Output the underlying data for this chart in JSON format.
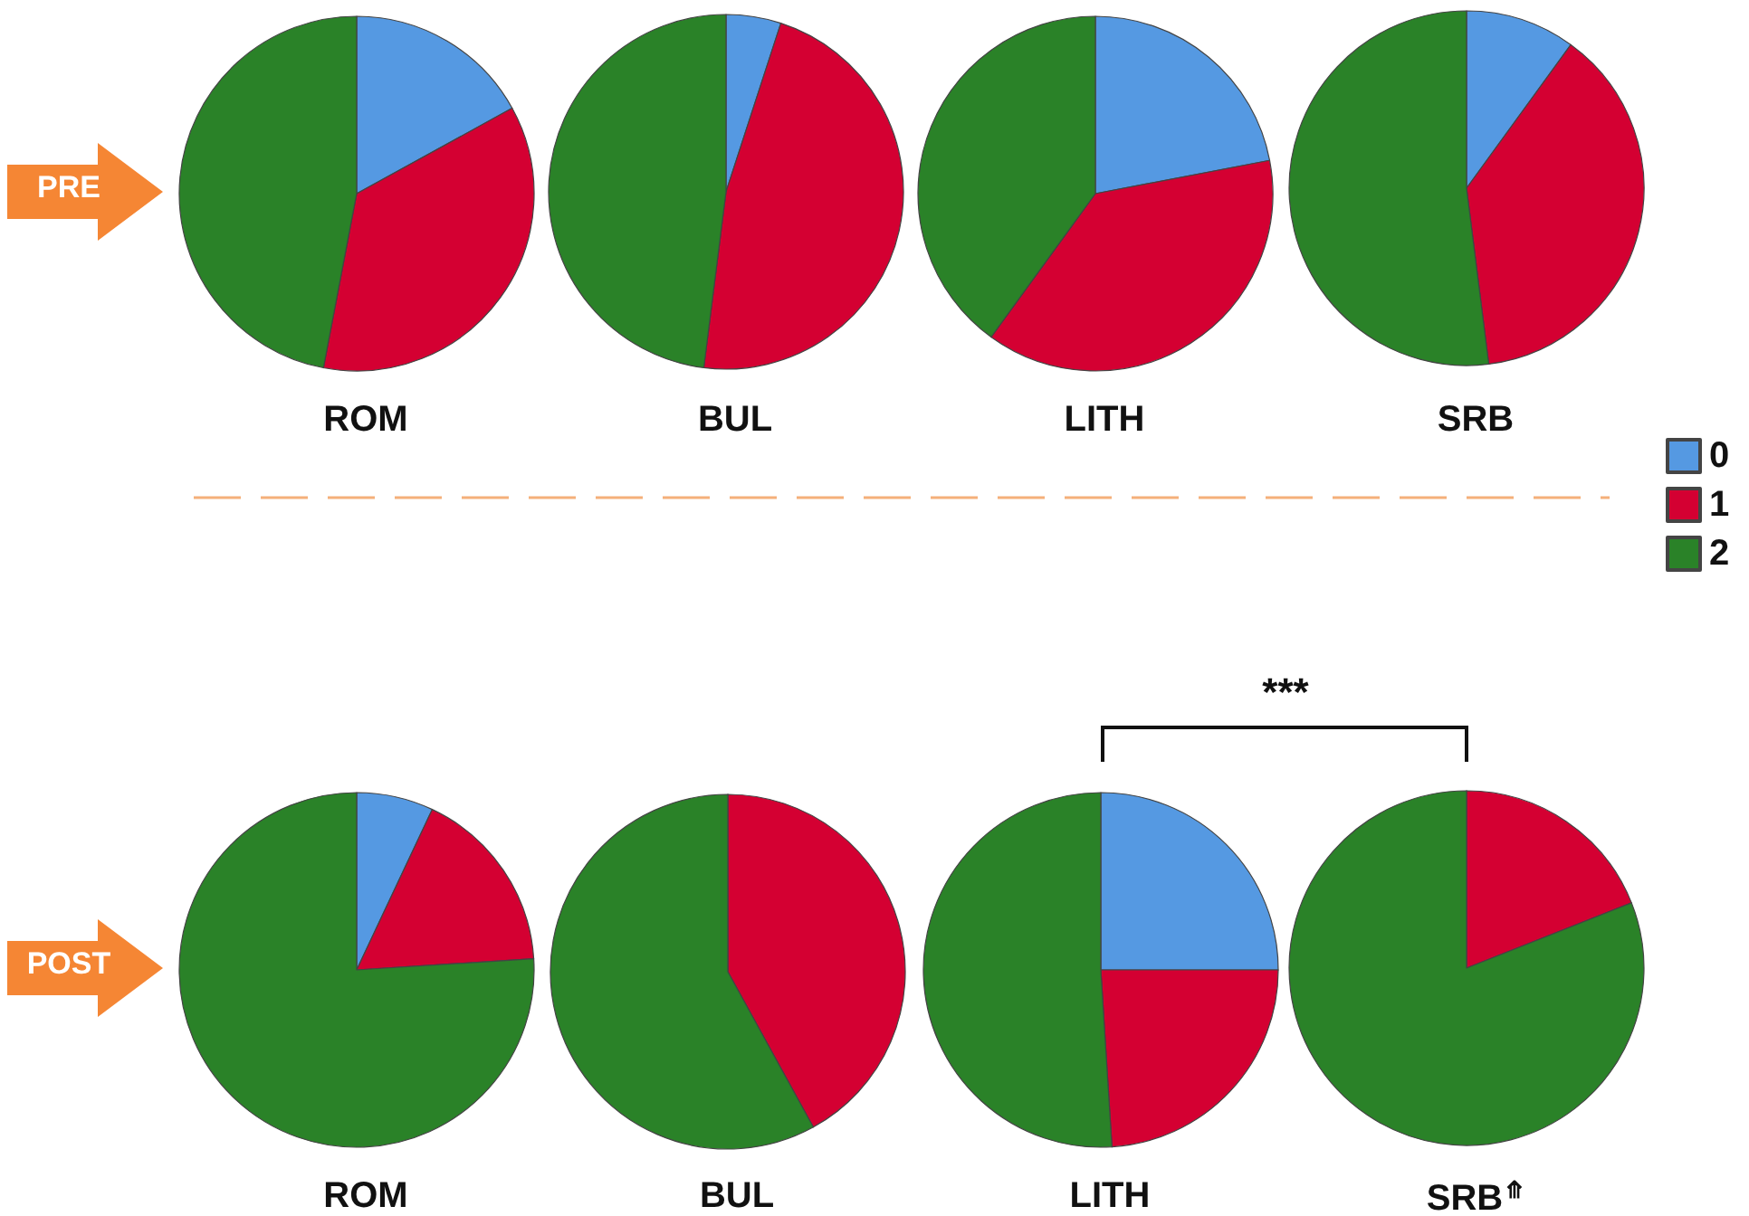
{
  "chart_data": {
    "type": "pie",
    "legend": "right",
    "annotations": [
      "PRE",
      "POST",
      "***"
    ],
    "categories": [
      "0",
      "1",
      "2"
    ],
    "colors": [
      "#5599e2",
      "#d40032",
      "#2a8228"
    ],
    "series": [
      {
        "name": "ROM",
        "values": [
          17,
          36,
          47
        ]
      },
      {
        "name": "BUL",
        "values": [
          5,
          47,
          48
        ]
      },
      {
        "name": "LITH",
        "values": [
          22,
          38,
          40
        ]
      },
      {
        "name": "SRB",
        "values": [
          10,
          38,
          52
        ]
      },
      {
        "name": "ROM",
        "values": [
          7,
          17,
          76
        ]
      },
      {
        "name": "BUL",
        "values": [
          0,
          42,
          58
        ]
      },
      {
        "name": "LITH",
        "values": [
          25,
          24,
          51
        ]
      },
      {
        "name": "SRB$^{⤊}$",
        "values": [
          0,
          19,
          81
        ]
      }
    ]
  }
}
